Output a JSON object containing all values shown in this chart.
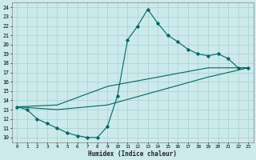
{
  "title": "",
  "xlabel": "Humidex (Indice chaleur)",
  "ylabel": "",
  "bg_color": "#cceaea",
  "grid_color": "#aad4d4",
  "line_color": "#006666",
  "xlim": [
    -0.5,
    23.5
  ],
  "ylim": [
    9.5,
    24.5
  ],
  "xticks": [
    0,
    1,
    2,
    3,
    4,
    5,
    6,
    7,
    8,
    9,
    10,
    11,
    12,
    13,
    14,
    15,
    16,
    17,
    18,
    19,
    20,
    21,
    22,
    23
  ],
  "yticks": [
    10,
    11,
    12,
    13,
    14,
    15,
    16,
    17,
    18,
    19,
    20,
    21,
    22,
    23,
    24
  ],
  "curve1_x": [
    0,
    1,
    2,
    3,
    4,
    5,
    6,
    7,
    8,
    9,
    10,
    11,
    12,
    13,
    14,
    15,
    16,
    17,
    18,
    19,
    20,
    21,
    22,
    23
  ],
  "curve1_y": [
    13.3,
    13.0,
    12.0,
    11.5,
    11.0,
    10.5,
    10.2,
    10.0,
    10.0,
    11.2,
    14.5,
    20.5,
    22.0,
    23.8,
    22.3,
    21.0,
    20.3,
    19.5,
    19.0,
    18.8,
    19.0,
    18.5,
    17.5,
    17.5
  ],
  "curve2_x": [
    0,
    23
  ],
  "curve2_y": [
    13.3,
    17.5
  ],
  "curve3_x": [
    0,
    23
  ],
  "curve3_y": [
    13.3,
    17.5
  ],
  "line2_points_x": [
    0,
    4,
    9,
    14,
    19,
    23
  ],
  "line2_points_y": [
    13.3,
    13.0,
    13.5,
    15.0,
    16.5,
    17.5
  ],
  "line3_points_x": [
    0,
    4,
    9,
    14,
    19,
    23
  ],
  "line3_points_y": [
    13.3,
    13.5,
    15.5,
    16.5,
    17.5,
    17.5
  ]
}
